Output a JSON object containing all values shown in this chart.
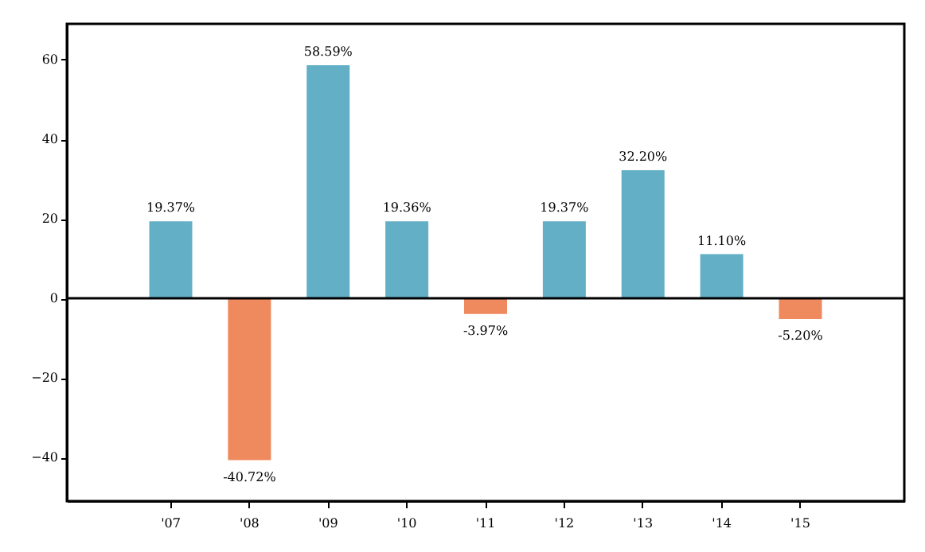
{
  "chart_data": {
    "type": "bar",
    "categories": [
      "'07",
      "'08",
      "'09",
      "'10",
      "'11",
      "'12",
      "'13",
      "'14",
      "'15"
    ],
    "values": [
      19.37,
      -40.72,
      58.59,
      19.36,
      -3.97,
      19.37,
      32.2,
      11.1,
      -5.2
    ],
    "colors": [
      "#62afc6",
      "#ef8a5e",
      "#62afc6",
      "#62afc6",
      "#ef8a5e",
      "#62afc6",
      "#62afc6",
      "#62afc6",
      "#ef8a5e"
    ],
    "value_labels": [
      "19.37%",
      "-40.72%",
      "58.59%",
      "19.36%",
      "-3.97%",
      "19.37%",
      "32.20%",
      "11.10%",
      "-5.20%"
    ],
    "ylim": [
      -51,
      69
    ],
    "yticks": [
      -40,
      -20,
      0,
      20,
      40,
      60
    ],
    "grid": false,
    "ref_lines": [
      {
        "axis": "y",
        "value": 0,
        "color": "#000000"
      }
    ]
  }
}
